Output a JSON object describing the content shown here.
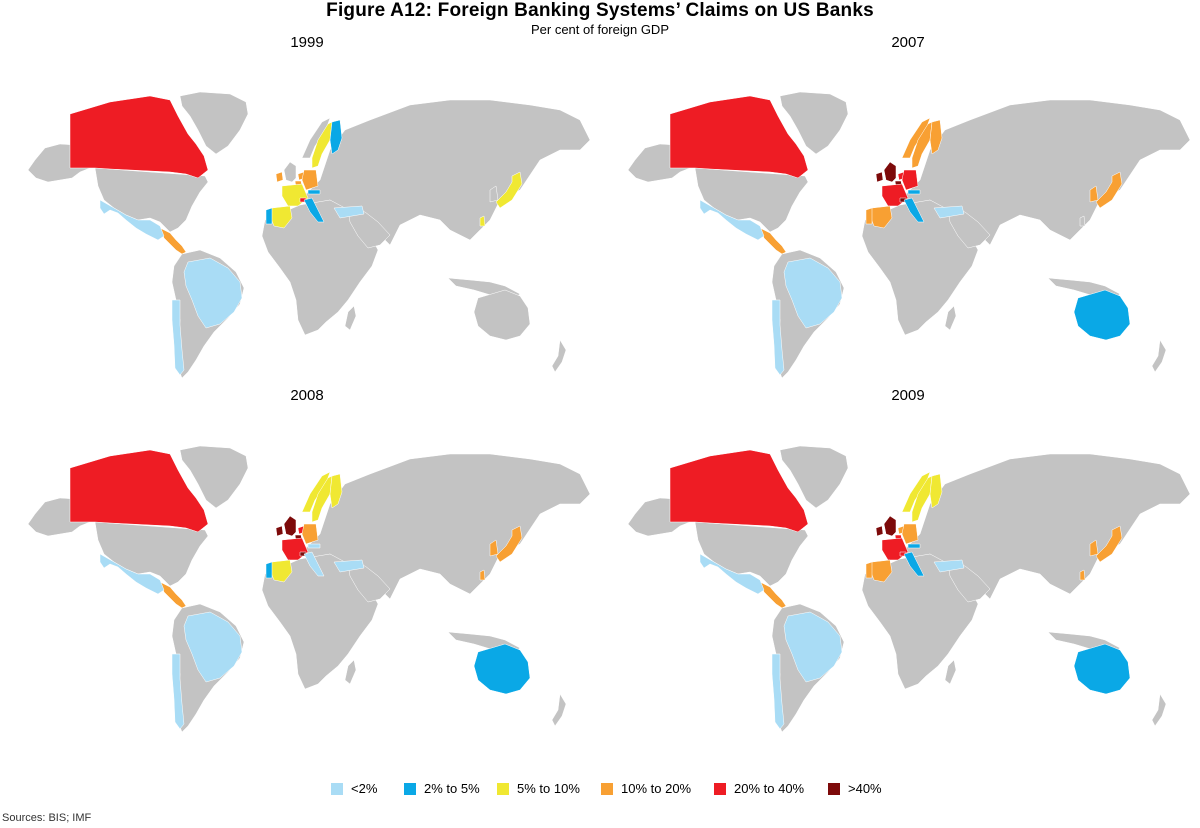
{
  "title": "Figure A12: Foreign Banking Systems’ Claims on US Banks",
  "subtitle": "Per cent of foreign GDP",
  "source": "Sources: BIS; IMF",
  "base_color": "#c3c3c3",
  "legend": [
    {
      "label": "<2%",
      "color": "#a9dcf5"
    },
    {
      "label": "2% to 5%",
      "color": "#0aa8e6"
    },
    {
      "label": "5% to 10%",
      "color": "#f0e832"
    },
    {
      "label": "10% to 20%",
      "color": "#f8a033"
    },
    {
      "label": "20% to 40%",
      "color": "#ee1c24"
    },
    {
      "label": ">40%",
      "color": "#7d0a0a"
    }
  ],
  "panels": [
    {
      "year": "1999",
      "classes": {
        "canada": 4,
        "mexico": 0,
        "central_america": 3,
        "brazil": 0,
        "chile": 0,
        "uk": -1,
        "ireland": 3,
        "france": 2,
        "spain": 2,
        "portugal": 1,
        "belgium": 3,
        "netherlands": 3,
        "germany": 3,
        "switzerland": 4,
        "italy": 1,
        "austria": 1,
        "sweden": 2,
        "finland": 1,
        "norway": -1,
        "turkey": 0,
        "japan": 2,
        "korea": -1,
        "taiwan": 2,
        "australia": -1
      }
    },
    {
      "year": "2007",
      "classes": {
        "canada": 4,
        "mexico": 0,
        "central_america": 3,
        "brazil": 0,
        "chile": 0,
        "uk": 5,
        "ireland": 5,
        "france": 4,
        "spain": 3,
        "portugal": 3,
        "belgium": 5,
        "netherlands": 4,
        "germany": 4,
        "switzerland": 5,
        "italy": 1,
        "austria": 1,
        "sweden": 3,
        "finland": 3,
        "norway": 3,
        "turkey": 0,
        "japan": 3,
        "korea": 3,
        "taiwan": -1,
        "australia": 1
      }
    },
    {
      "year": "2008",
      "classes": {
        "canada": 4,
        "mexico": 0,
        "central_america": 3,
        "brazil": 0,
        "chile": 0,
        "uk": 5,
        "ireland": 5,
        "france": 4,
        "spain": 2,
        "portugal": 1,
        "belgium": 5,
        "netherlands": 4,
        "germany": 3,
        "switzerland": 5,
        "italy": 0,
        "austria": 0,
        "sweden": 2,
        "finland": 2,
        "norway": 2,
        "turkey": 0,
        "japan": 3,
        "korea": 3,
        "taiwan": 3,
        "australia": 1
      }
    },
    {
      "year": "2009",
      "classes": {
        "canada": 4,
        "mexico": 0,
        "central_america": 3,
        "brazil": 0,
        "chile": 0,
        "uk": 5,
        "ireland": 5,
        "france": 4,
        "spain": 3,
        "portugal": 3,
        "belgium": 4,
        "netherlands": 3,
        "germany": 3,
        "switzerland": 4,
        "italy": 1,
        "austria": 1,
        "sweden": 2,
        "finland": 2,
        "norway": 2,
        "turkey": 0,
        "japan": 3,
        "korea": 3,
        "taiwan": 3,
        "australia": 1
      }
    }
  ]
}
